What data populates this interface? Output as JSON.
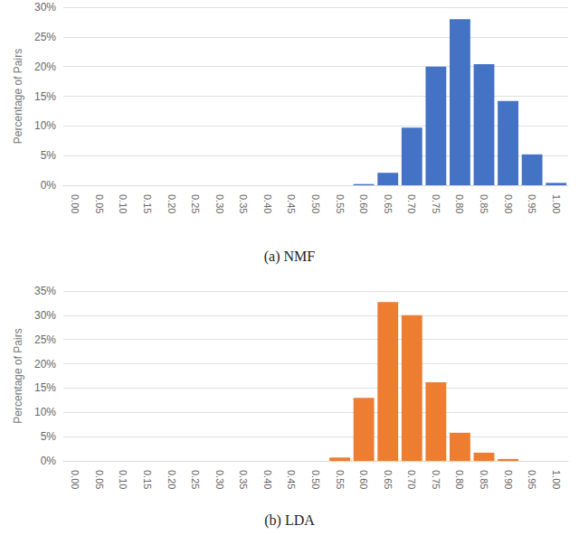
{
  "chart_data": [
    {
      "type": "bar",
      "title": "(a) NMF",
      "y_label": "Percentage of Pairs",
      "categories": [
        "0.00",
        "0.05",
        "0.10",
        "0.15",
        "0.20",
        "0.25",
        "0.30",
        "0.35",
        "0.40",
        "0.45",
        "0.50",
        "0.55",
        "0.60",
        "0.65",
        "0.70",
        "0.75",
        "0.80",
        "0.85",
        "0.90",
        "0.95",
        "1.00"
      ],
      "values": [
        0,
        0,
        0,
        0,
        0,
        0,
        0,
        0,
        0,
        0,
        0,
        0,
        0.2,
        2.1,
        9.7,
        20,
        28,
        20.4,
        14.2,
        5.2,
        0.4
      ],
      "color": "#4472c4",
      "ylim": [
        0,
        30
      ],
      "yticks": [
        {
          "value": 0,
          "label": "0%"
        },
        {
          "value": 5,
          "label": "5%"
        },
        {
          "value": 10,
          "label": "10%"
        },
        {
          "value": 15,
          "label": "15%"
        },
        {
          "value": 20,
          "label": "20%"
        },
        {
          "value": 25,
          "label": "25%"
        },
        {
          "value": 30,
          "label": "30%"
        }
      ],
      "grid": true
    },
    {
      "type": "bar",
      "title": "(b) LDA",
      "y_label": "Percentage of Pairs",
      "categories": [
        "0.00",
        "0.05",
        "0.10",
        "0.15",
        "0.20",
        "0.25",
        "0.30",
        "0.35",
        "0.40",
        "0.45",
        "0.50",
        "0.55",
        "0.60",
        "0.65",
        "0.70",
        "0.75",
        "0.80",
        "0.85",
        "0.90",
        "0.95",
        "1.00"
      ],
      "values": [
        0,
        0,
        0,
        0,
        0,
        0,
        0,
        0,
        0,
        0,
        0,
        0.7,
        13,
        32.7,
        30,
        16.2,
        5.8,
        1.7,
        0.4,
        0,
        0
      ],
      "color": "#ed7d31",
      "ylim": [
        0,
        35
      ],
      "yticks": [
        {
          "value": 0,
          "label": "0%"
        },
        {
          "value": 5,
          "label": "5%"
        },
        {
          "value": 10,
          "label": "10%"
        },
        {
          "value": 15,
          "label": "15%"
        },
        {
          "value": 20,
          "label": "20%"
        },
        {
          "value": 25,
          "label": "25%"
        },
        {
          "value": 30,
          "label": "30%"
        },
        {
          "value": 35,
          "label": "35%"
        }
      ],
      "grid": true
    }
  ]
}
